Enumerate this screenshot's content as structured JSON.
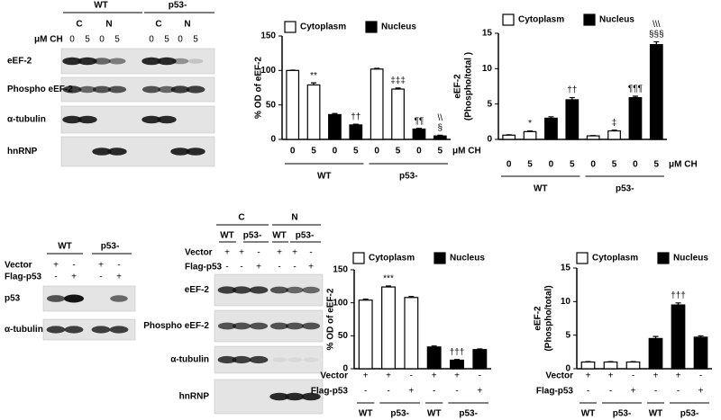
{
  "blots": [
    {
      "groups": [
        "WT",
        "p53-"
      ],
      "subgroups": [
        "C",
        "N",
        "C",
        "N"
      ],
      "lane_rows": [
        {
          "name": "μM CH",
          "labels": [
            "0",
            "5",
            "0",
            "5",
            "0",
            "5",
            "0",
            "5"
          ]
        }
      ],
      "rows": [
        "eEF-2",
        "Phospho eEF-2",
        "α-tubulin",
        "hnRNP"
      ]
    },
    {
      "groups": [
        "WT",
        "p53-"
      ],
      "lane_rows": [
        {
          "name": "Vector",
          "labels": [
            "+",
            "-",
            "+",
            "-"
          ]
        },
        {
          "name": "Flag-p53",
          "labels": [
            "-",
            "+",
            "-",
            "+"
          ]
        }
      ],
      "rows": [
        "p53",
        "α-tubulin"
      ]
    },
    {
      "groups": [
        "C",
        "N"
      ],
      "subgroups": [
        "WT",
        "p53-",
        "WT",
        "p53-"
      ],
      "lane_rows": [
        {
          "name": "Vector",
          "labels": [
            "+",
            "+",
            "-",
            "+",
            "+",
            "-"
          ]
        },
        {
          "name": "Flag-p53",
          "labels": [
            "-",
            "-",
            "+",
            "-",
            "-",
            "+"
          ]
        }
      ],
      "rows": [
        "eEF-2",
        "Phospho eEF-2",
        "α-tubulin",
        "hnRNP"
      ]
    }
  ],
  "chart_data": [
    {
      "type": "bar",
      "legend": "top",
      "y_label": [
        "% OD of eEF-2"
      ],
      "ylim": [
        0,
        150
      ],
      "yticks": [
        0,
        50,
        100,
        150
      ],
      "categories": [
        "0",
        "5",
        "0",
        "5",
        "0",
        "5",
        "0",
        "5"
      ],
      "x_unit": "μM CH",
      "groups": [
        {
          "label": "WT",
          "size": 4
        },
        {
          "label": "p53-",
          "size": 4
        }
      ],
      "series": [
        {
          "name": "Cytoplasm",
          "color": "#ffffff",
          "values": [
            100,
            79,
            null,
            null,
            102,
            73,
            null,
            null
          ],
          "errors": [
            0.5,
            3,
            null,
            null,
            1,
            1.5,
            null,
            null
          ]
        },
        {
          "name": "Nucleus",
          "color": "#000000",
          "values": [
            null,
            null,
            36,
            21,
            null,
            null,
            15,
            5
          ],
          "errors": [
            null,
            null,
            1.5,
            1,
            null,
            null,
            1,
            1
          ]
        }
      ],
      "annotations": [
        null,
        [
          "**"
        ],
        null,
        [
          "††"
        ],
        null,
        [
          "‡‡‡"
        ],
        [
          "¶¶"
        ],
        [
          "\\\\",
          "§"
        ]
      ]
    },
    {
      "type": "bar",
      "legend": "top",
      "y_label": [
        "eEF-2",
        "(Phospho/total )"
      ],
      "ylim": [
        0,
        15
      ],
      "yticks": [
        0,
        5,
        10,
        15
      ],
      "categories": [
        "0",
        "5",
        "0",
        "5",
        "0",
        "5",
        "0",
        "5"
      ],
      "x_unit": "μM CH",
      "groups": [
        {
          "label": "WT",
          "size": 4
        },
        {
          "label": "p53-",
          "size": 4
        }
      ],
      "series": [
        {
          "name": "Cytoplasm",
          "color": "#ffffff",
          "values": [
            0.6,
            1.1,
            null,
            null,
            0.5,
            1.2,
            null,
            null
          ],
          "errors": [
            0.05,
            0.1,
            null,
            null,
            0.05,
            0.1,
            null,
            null
          ]
        },
        {
          "name": "Nucleus",
          "color": "#000000",
          "values": [
            null,
            null,
            3.0,
            5.6,
            null,
            null,
            5.9,
            13.4
          ],
          "errors": [
            null,
            null,
            0.2,
            0.3,
            null,
            null,
            0.2,
            0.4
          ]
        }
      ],
      "annotations": [
        null,
        [
          "*"
        ],
        null,
        [
          "††"
        ],
        null,
        [
          "‡"
        ],
        [
          "¶¶¶"
        ],
        [
          "\\\\\\",
          "§§§"
        ]
      ]
    },
    {
      "type": "bar",
      "legend": "top",
      "y_label": [
        "% OD of eEF-2"
      ],
      "ylim": [
        0,
        150
      ],
      "yticks": [
        0,
        50,
        100,
        150
      ],
      "category_rows": [
        {
          "name": "Vector",
          "labels": [
            "+",
            "+",
            "-",
            "+",
            "+",
            "-"
          ]
        },
        {
          "name": "Flag-p53",
          "labels": [
            "-",
            "-",
            "+",
            "-",
            "-",
            "+"
          ]
        }
      ],
      "groups": [
        {
          "label": "WT",
          "size": 1
        },
        {
          "label": "p53-",
          "size": 2
        },
        {
          "label": "WT",
          "size": 1
        },
        {
          "label": "p53-",
          "size": 2
        }
      ],
      "series": [
        {
          "name": "Cytoplasm",
          "color": "#ffffff",
          "values": [
            104,
            124,
            108,
            null,
            null,
            null
          ],
          "errors": [
            1.5,
            1.5,
            1.5,
            null,
            null,
            null
          ]
        },
        {
          "name": "Nucleus",
          "color": "#000000",
          "values": [
            null,
            null,
            null,
            33,
            13,
            29
          ],
          "errors": [
            null,
            null,
            null,
            1.5,
            1,
            1
          ]
        }
      ],
      "annotations": [
        null,
        [
          "***"
        ],
        null,
        null,
        [
          "†††"
        ],
        null
      ]
    },
    {
      "type": "bar",
      "legend": "top",
      "y_label": [
        "eEF-2",
        "(Phospho/total)"
      ],
      "ylim": [
        0,
        15
      ],
      "yticks": [
        0,
        5,
        10,
        15
      ],
      "category_rows": [
        {
          "name": "Vector",
          "labels": [
            "+",
            "+",
            "-",
            "+",
            "+",
            "-"
          ]
        },
        {
          "name": "Flag-p53",
          "labels": [
            "-",
            "-",
            "+",
            "-",
            "-",
            "+"
          ]
        }
      ],
      "groups": [
        {
          "label": "WT",
          "size": 1
        },
        {
          "label": "p53-",
          "size": 2
        },
        {
          "label": "WT",
          "size": 1
        },
        {
          "label": "p53-",
          "size": 2
        }
      ],
      "series": [
        {
          "name": "Cytoplasm",
          "color": "#ffffff",
          "values": [
            1.0,
            1.0,
            1.0,
            null,
            null,
            null
          ],
          "errors": [
            0.05,
            0.05,
            0.05,
            null,
            null,
            null
          ]
        },
        {
          "name": "Nucleus",
          "color": "#000000",
          "values": [
            null,
            null,
            null,
            4.5,
            9.5,
            4.7
          ],
          "errors": [
            null,
            null,
            null,
            0.3,
            0.3,
            0.2
          ]
        }
      ],
      "annotations": [
        null,
        null,
        null,
        null,
        [
          "†††"
        ],
        null
      ]
    }
  ]
}
